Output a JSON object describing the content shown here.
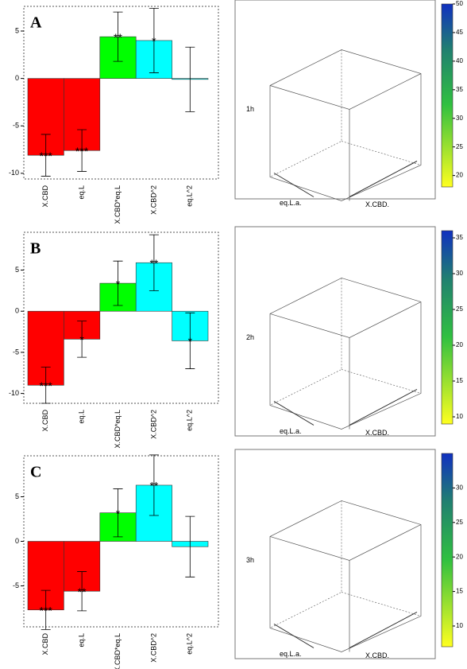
{
  "chart_data": [
    {
      "type": "bar",
      "panel": "A",
      "categories": [
        "X.CBD",
        "eq.L",
        "X.CBD*eq.L",
        "X.CBD^2",
        "eq.L^2"
      ],
      "values": [
        -8.1,
        -7.6,
        4.4,
        4.0,
        -0.1
      ],
      "errors": [
        2.2,
        2.2,
        2.6,
        3.4,
        3.4
      ],
      "significance": [
        "***",
        "***",
        "**",
        "*",
        null
      ],
      "colors": [
        "#ff0000",
        "#ff0000",
        "#00ff00",
        "#00ffff",
        "#00ffff"
      ],
      "ylim": [
        -10.6,
        7.6
      ],
      "yticks": [
        -10,
        -5,
        0,
        5
      ]
    },
    {
      "type": "surface3d",
      "z_label": "1h",
      "y_label": "eq.L.a.",
      "x_label": "X.CBD.",
      "colorbar_lim": [
        18,
        50
      ],
      "colorbar_ticks": [
        20,
        25,
        30,
        35,
        40,
        45,
        50
      ]
    },
    {
      "type": "bar",
      "panel": "B",
      "categories": [
        "X.CBD",
        "eq.L",
        "X.CBD*eq.L",
        "X.CBD^2",
        "eq.L^2"
      ],
      "values": [
        -9.0,
        -3.4,
        3.4,
        5.9,
        -3.6
      ],
      "errors": [
        2.2,
        2.2,
        2.7,
        3.4,
        3.4
      ],
      "significance": [
        "***",
        "*",
        "*",
        "**",
        "*"
      ],
      "colors": [
        "#ff0000",
        "#ff0000",
        "#00ff00",
        "#00ffff",
        "#00ffff"
      ],
      "ylim": [
        -11.2,
        9.6
      ],
      "yticks": [
        -10,
        -5,
        0,
        5
      ]
    },
    {
      "type": "surface3d",
      "z_label": "2h",
      "y_label": "eq.L.a.",
      "x_label": "X.CBD.",
      "colorbar_lim": [
        9,
        36
      ],
      "colorbar_ticks": [
        10,
        15,
        20,
        25,
        30,
        35
      ]
    },
    {
      "type": "bar",
      "panel": "C",
      "categories": [
        "X.CBD",
        "eq.L",
        "X.CBD*eq.L",
        "X.CBD^2",
        "eq.L^2"
      ],
      "values": [
        -7.7,
        -5.6,
        3.2,
        6.3,
        -0.6
      ],
      "errors": [
        2.2,
        2.2,
        2.7,
        3.4,
        3.4
      ],
      "significance": [
        "***",
        "**",
        "*",
        "**",
        null
      ],
      "colors": [
        "#ff0000",
        "#ff0000",
        "#00ff00",
        "#00ffff",
        "#00ffff"
      ],
      "ylim": [
        -9.6,
        9.6
      ],
      "yticks": [
        -5,
        0,
        5
      ]
    },
    {
      "type": "surface3d",
      "z_label": "3h",
      "y_label": "eq.L.a.",
      "x_label": "X.CBD.",
      "colorbar_lim": [
        7,
        35
      ],
      "colorbar_ticks": [
        10,
        15,
        20,
        25,
        30
      ]
    }
  ]
}
